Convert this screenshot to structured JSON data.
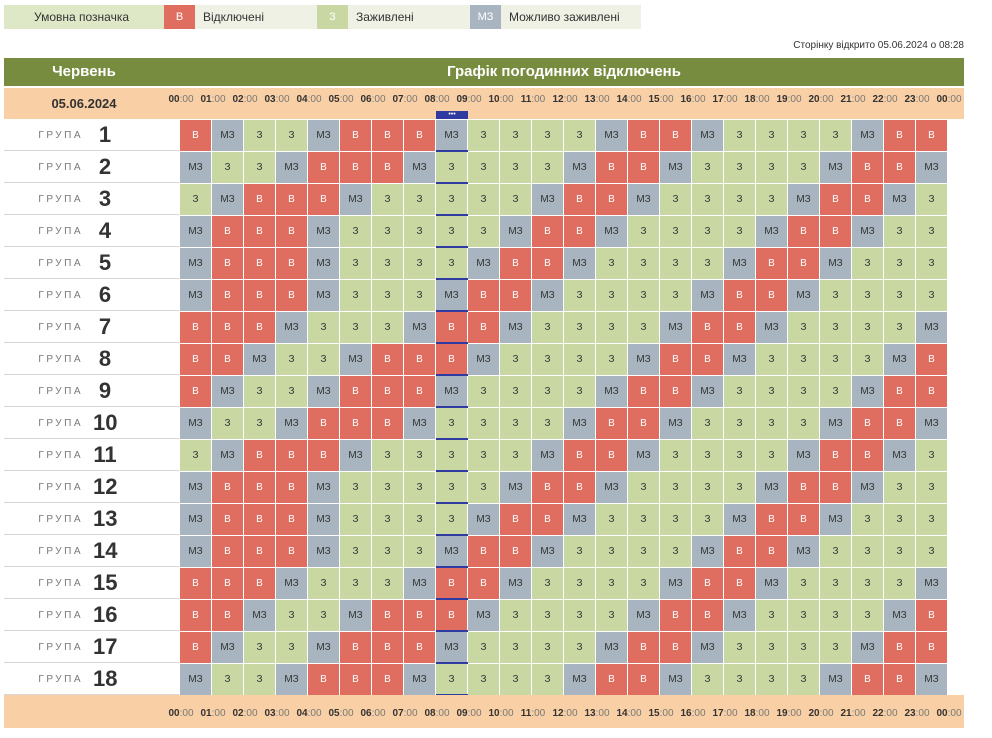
{
  "legend": {
    "title": "Умовна позначка",
    "items": [
      {
        "code": "В",
        "label": "Відключені",
        "color": "#df6e60"
      },
      {
        "code": "З",
        "label": "Заживлені",
        "color": "#c9d8a3"
      },
      {
        "code": "МЗ",
        "label": "Можливо заживлені",
        "color": "#a8b5c0"
      }
    ]
  },
  "opened_text": "Сторінку відкрито 05.06.2024 о 08:28",
  "header": {
    "month": "Червень",
    "title": "Графік погодинних відключень",
    "date": "05.06.2024"
  },
  "now_marker": "•••",
  "hours": [
    "00",
    "01",
    "02",
    "03",
    "04",
    "05",
    "06",
    "07",
    "08",
    "09",
    "10",
    "11",
    "12",
    "13",
    "14",
    "15",
    "16",
    "17",
    "18",
    "19",
    "20",
    "21",
    "22",
    "23",
    "00"
  ],
  "minutes": ":00",
  "group_word": "ГРУПА",
  "groups": [
    {
      "number": "1",
      "cells": [
        "В",
        "МЗ",
        "З",
        "З",
        "МЗ",
        "В",
        "В",
        "В",
        "МЗ",
        "З",
        "З",
        "З",
        "З",
        "МЗ",
        "В",
        "В",
        "МЗ",
        "З",
        "З",
        "З",
        "З",
        "МЗ",
        "В",
        "В"
      ]
    },
    {
      "number": "2",
      "cells": [
        "МЗ",
        "З",
        "З",
        "МЗ",
        "В",
        "В",
        "В",
        "МЗ",
        "З",
        "З",
        "З",
        "З",
        "МЗ",
        "В",
        "В",
        "МЗ",
        "З",
        "З",
        "З",
        "З",
        "МЗ",
        "В",
        "В",
        "МЗ"
      ]
    },
    {
      "number": "3",
      "cells": [
        "З",
        "МЗ",
        "В",
        "В",
        "В",
        "МЗ",
        "З",
        "З",
        "З",
        "З",
        "З",
        "МЗ",
        "В",
        "В",
        "МЗ",
        "З",
        "З",
        "З",
        "З",
        "МЗ",
        "В",
        "В",
        "МЗ",
        "З"
      ]
    },
    {
      "number": "4",
      "cells": [
        "МЗ",
        "В",
        "В",
        "В",
        "МЗ",
        "З",
        "З",
        "З",
        "З",
        "З",
        "МЗ",
        "В",
        "В",
        "МЗ",
        "З",
        "З",
        "З",
        "З",
        "МЗ",
        "В",
        "В",
        "МЗ",
        "З",
        "З"
      ]
    },
    {
      "number": "5",
      "cells": [
        "МЗ",
        "В",
        "В",
        "В",
        "МЗ",
        "З",
        "З",
        "З",
        "З",
        "МЗ",
        "В",
        "В",
        "МЗ",
        "З",
        "З",
        "З",
        "З",
        "МЗ",
        "В",
        "В",
        "МЗ",
        "З",
        "З",
        "З"
      ]
    },
    {
      "number": "6",
      "cells": [
        "МЗ",
        "В",
        "В",
        "В",
        "МЗ",
        "З",
        "З",
        "З",
        "МЗ",
        "В",
        "В",
        "МЗ",
        "З",
        "З",
        "З",
        "З",
        "МЗ",
        "В",
        "В",
        "МЗ",
        "З",
        "З",
        "З",
        "З"
      ]
    },
    {
      "number": "7",
      "cells": [
        "В",
        "В",
        "В",
        "МЗ",
        "З",
        "З",
        "З",
        "МЗ",
        "В",
        "В",
        "МЗ",
        "З",
        "З",
        "З",
        "З",
        "МЗ",
        "В",
        "В",
        "МЗ",
        "З",
        "З",
        "З",
        "З",
        "МЗ"
      ]
    },
    {
      "number": "8",
      "cells": [
        "В",
        "В",
        "МЗ",
        "З",
        "З",
        "МЗ",
        "В",
        "В",
        "В",
        "МЗ",
        "З",
        "З",
        "З",
        "З",
        "МЗ",
        "В",
        "В",
        "МЗ",
        "З",
        "З",
        "З",
        "З",
        "МЗ",
        "В"
      ]
    },
    {
      "number": "9",
      "cells": [
        "В",
        "МЗ",
        "З",
        "З",
        "МЗ",
        "В",
        "В",
        "В",
        "МЗ",
        "З",
        "З",
        "З",
        "З",
        "МЗ",
        "В",
        "В",
        "МЗ",
        "З",
        "З",
        "З",
        "З",
        "МЗ",
        "В",
        "В"
      ]
    },
    {
      "number": "10",
      "cells": [
        "МЗ",
        "З",
        "З",
        "МЗ",
        "В",
        "В",
        "В",
        "МЗ",
        "З",
        "З",
        "З",
        "З",
        "МЗ",
        "В",
        "В",
        "МЗ",
        "З",
        "З",
        "З",
        "З",
        "МЗ",
        "В",
        "В",
        "МЗ"
      ]
    },
    {
      "number": "11",
      "cells": [
        "З",
        "МЗ",
        "В",
        "В",
        "В",
        "МЗ",
        "З",
        "З",
        "З",
        "З",
        "З",
        "МЗ",
        "В",
        "В",
        "МЗ",
        "З",
        "З",
        "З",
        "З",
        "МЗ",
        "В",
        "В",
        "МЗ",
        "З"
      ]
    },
    {
      "number": "12",
      "cells": [
        "МЗ",
        "В",
        "В",
        "В",
        "МЗ",
        "З",
        "З",
        "З",
        "З",
        "З",
        "МЗ",
        "В",
        "В",
        "МЗ",
        "З",
        "З",
        "З",
        "З",
        "МЗ",
        "В",
        "В",
        "МЗ",
        "З",
        "З"
      ]
    },
    {
      "number": "13",
      "cells": [
        "МЗ",
        "В",
        "В",
        "В",
        "МЗ",
        "З",
        "З",
        "З",
        "З",
        "МЗ",
        "В",
        "В",
        "МЗ",
        "З",
        "З",
        "З",
        "З",
        "МЗ",
        "В",
        "В",
        "МЗ",
        "З",
        "З",
        "З"
      ]
    },
    {
      "number": "14",
      "cells": [
        "МЗ",
        "В",
        "В",
        "В",
        "МЗ",
        "З",
        "З",
        "З",
        "МЗ",
        "В",
        "В",
        "МЗ",
        "З",
        "З",
        "З",
        "З",
        "МЗ",
        "В",
        "В",
        "МЗ",
        "З",
        "З",
        "З",
        "З"
      ]
    },
    {
      "number": "15",
      "cells": [
        "В",
        "В",
        "В",
        "МЗ",
        "З",
        "З",
        "З",
        "МЗ",
        "В",
        "В",
        "МЗ",
        "З",
        "З",
        "З",
        "З",
        "МЗ",
        "В",
        "В",
        "МЗ",
        "З",
        "З",
        "З",
        "З",
        "МЗ"
      ]
    },
    {
      "number": "16",
      "cells": [
        "В",
        "В",
        "МЗ",
        "З",
        "З",
        "МЗ",
        "В",
        "В",
        "В",
        "МЗ",
        "З",
        "З",
        "З",
        "З",
        "МЗ",
        "В",
        "В",
        "МЗ",
        "З",
        "З",
        "З",
        "З",
        "МЗ",
        "В"
      ]
    },
    {
      "number": "17",
      "cells": [
        "В",
        "МЗ",
        "З",
        "З",
        "МЗ",
        "В",
        "В",
        "В",
        "МЗ",
        "З",
        "З",
        "З",
        "З",
        "МЗ",
        "В",
        "В",
        "МЗ",
        "З",
        "З",
        "З",
        "З",
        "МЗ",
        "В",
        "В"
      ]
    },
    {
      "number": "18",
      "cells": [
        "МЗ",
        "З",
        "З",
        "МЗ",
        "В",
        "В",
        "В",
        "МЗ",
        "З",
        "З",
        "З",
        "З",
        "МЗ",
        "В",
        "В",
        "МЗ",
        "З",
        "З",
        "З",
        "З",
        "МЗ",
        "В",
        "В",
        "МЗ"
      ]
    }
  ]
}
